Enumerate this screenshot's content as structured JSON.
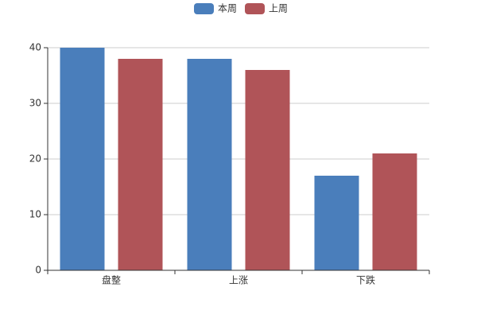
{
  "chart_data": {
    "type": "bar",
    "categories": [
      "盘整",
      "上涨",
      "下跌"
    ],
    "series": [
      {
        "name": "本周",
        "color": "#4a7ebb",
        "values": [
          40,
          38,
          17
        ]
      },
      {
        "name": "上周",
        "color": "#b05458",
        "values": [
          38,
          36,
          21
        ]
      }
    ],
    "ylim": [
      0,
      40
    ],
    "yticks": [
      0,
      10,
      20,
      30,
      40
    ],
    "grid": true,
    "legend": "top"
  }
}
